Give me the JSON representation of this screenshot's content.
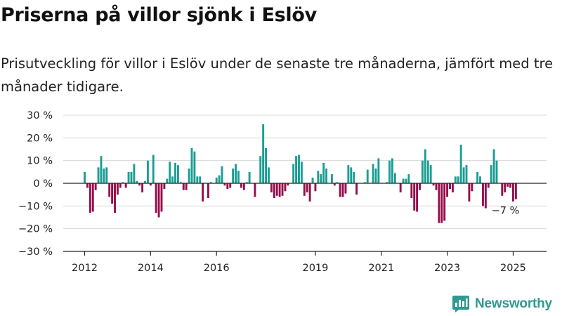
{
  "header": {
    "title": "Priserna på villor sjönk i Eslöv",
    "subtitle": "Prisutveckling för villor i Eslöv under de senaste tre månaderna, jämfört med tre månader tidigare."
  },
  "branding": {
    "logo_text": "Newsworthy",
    "logo_icon": "bar-chart-icon"
  },
  "chart_data": {
    "type": "bar",
    "title": "",
    "xlabel": "",
    "ylabel": "",
    "ylim": [
      -30,
      30
    ],
    "y_ticks": [
      30,
      20,
      10,
      0,
      -10,
      -20,
      -30
    ],
    "y_tick_labels": [
      "30 %",
      "20 %",
      "10 %",
      "0 %",
      "−10 %",
      "−20 %",
      "−30 %"
    ],
    "x_ticks": [
      2012,
      2014,
      2016,
      2019,
      2021,
      2023,
      2025
    ],
    "x_tick_labels": [
      "2012",
      "2014",
      "2016",
      "2019",
      "2021",
      "2023",
      "2025"
    ],
    "start": "2012-01",
    "frequency": "monthly",
    "annotation": "−7 %",
    "colors": {
      "positive": "#1a9e94",
      "negative": "#950e4c",
      "axis": "#222222",
      "grid": "#d8d8d8"
    },
    "values": [
      5,
      -2,
      -13,
      -12.5,
      -3,
      7,
      12,
      6.5,
      7,
      -6,
      -9,
      -13,
      -5,
      -2,
      0.5,
      -2,
      5,
      5,
      8.5,
      1,
      -1,
      -4,
      1,
      10,
      -1,
      12.5,
      -13,
      -15,
      -12.5,
      -2.5,
      2,
      9.5,
      3,
      9,
      8,
      0.5,
      -3,
      -3,
      6.5,
      15.5,
      14,
      3,
      3,
      -8,
      0,
      -6.5,
      0.5,
      0,
      2.5,
      3.5,
      7.5,
      -1,
      -2.5,
      -2,
      6.5,
      8.5,
      5.5,
      -2,
      -3,
      0.5,
      5,
      0,
      -6,
      0,
      12,
      26,
      15.5,
      7,
      -4,
      -6.5,
      -5.5,
      -6,
      -5.5,
      -3.5,
      -1,
      0,
      8.5,
      12,
      12.5,
      9.5,
      -5.5,
      -4,
      -8,
      2.5,
      -3.5,
      5.5,
      4,
      9,
      6.5,
      0,
      4,
      -1,
      0.5,
      -6,
      -6,
      -4.5,
      8,
      7,
      5,
      -5,
      0,
      0,
      0.5,
      6,
      0,
      8.5,
      6.5,
      11,
      0,
      0,
      0.5,
      10,
      11,
      4.5,
      0,
      -4,
      2,
      2,
      4,
      -6.5,
      -12,
      -12.5,
      -3,
      10,
      15,
      10,
      8,
      -1,
      -3,
      -17.5,
      -17.5,
      -16.5,
      -6,
      -2.5,
      -4,
      3,
      3,
      17,
      7,
      8,
      -8,
      -3.5,
      0,
      5,
      3,
      -10,
      -11,
      -2,
      8,
      15,
      10,
      0,
      -5.5,
      -4,
      -1.5,
      -2,
      -8,
      -7
    ]
  }
}
